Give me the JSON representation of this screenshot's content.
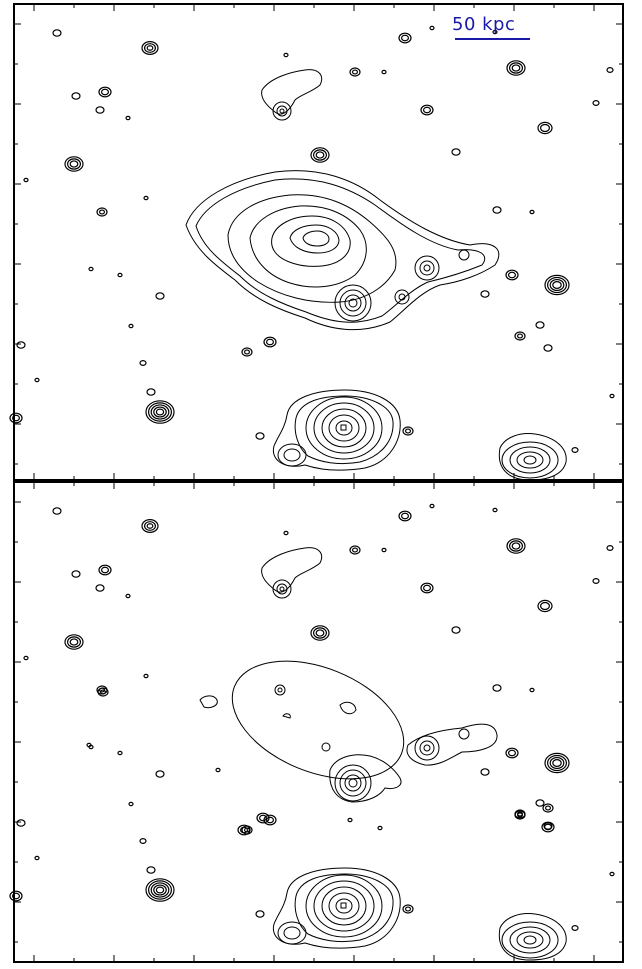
{
  "scalebar": {
    "label": "50 kpc",
    "color": "#1a1aa6"
  },
  "panels": [
    {
      "name": "top-panel",
      "description_visible": false
    },
    {
      "name": "bottom-panel",
      "description_visible": false
    }
  ],
  "colors": {
    "contour": "#000000",
    "frame": "#000000",
    "background": "#ffffff"
  }
}
